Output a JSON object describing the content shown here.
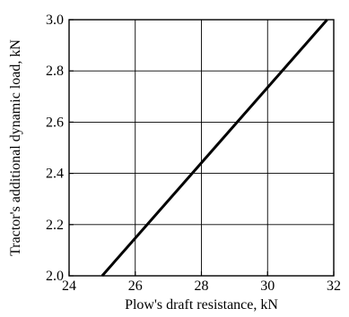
{
  "chart_data": {
    "type": "line",
    "title": "",
    "xlabel": "Plow's draft resistance, kN",
    "ylabel": "Tractor's additional dynamic load, kN",
    "xlim": [
      24,
      32
    ],
    "ylim": [
      2.0,
      3.0
    ],
    "x_ticks": [
      "24",
      "26",
      "28",
      "30",
      "32"
    ],
    "y_ticks": [
      "2.0",
      "2.2",
      "2.4",
      "2.6",
      "2.8",
      "3.0"
    ],
    "grid": true,
    "series": [
      {
        "x": [
          25.0,
          31.8
        ],
        "y": [
          2.0,
          3.0
        ],
        "color": "#000000"
      }
    ]
  }
}
